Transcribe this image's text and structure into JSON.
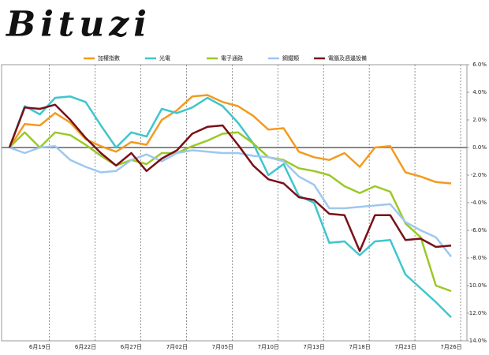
{
  "chart_data": {
    "type": "line",
    "title": "Bituzi",
    "categories": [
      null,
      null,
      "6月19日",
      null,
      null,
      "6月22日",
      null,
      null,
      "6月27日",
      null,
      null,
      "7月02日",
      null,
      null,
      "7月05日",
      null,
      null,
      "7月10日",
      null,
      null,
      "7月13日",
      null,
      null,
      "7月18日",
      null,
      null,
      "7月23日",
      null,
      null,
      "7月26日"
    ],
    "series": [
      {
        "name": "加權指數",
        "color": "#f39a1e",
        "values": [
          0,
          1.7,
          1.6,
          2.5,
          1.8,
          0.6,
          0.1,
          -0.3,
          0.4,
          0.2,
          2.0,
          2.7,
          3.7,
          3.8,
          3.3,
          3.0,
          2.3,
          1.3,
          1.4,
          -0.3,
          -0.7,
          -0.9,
          -0.4,
          -1.4,
          0.0,
          0.1,
          -1.8,
          -2.1,
          -2.5,
          -2.6
        ]
      },
      {
        "name": "光電",
        "color": "#3ec6cc",
        "values": [
          0,
          3.0,
          2.4,
          3.6,
          3.7,
          3.3,
          1.6,
          0.0,
          1.1,
          0.8,
          2.8,
          2.5,
          2.9,
          3.6,
          3.0,
          1.8,
          0.3,
          -2.0,
          -1.2,
          -3.5,
          -4.0,
          -6.9,
          -6.8,
          -7.8,
          -6.8,
          -6.7,
          -9.2,
          -10.2,
          -11.2,
          -12.3
        ]
      },
      {
        "name": "電子通路",
        "color": "#9cc826",
        "values": [
          0,
          1.1,
          0.0,
          1.1,
          0.9,
          0.2,
          -0.6,
          -1.3,
          -0.9,
          -1.2,
          -0.4,
          -0.4,
          0.1,
          0.5,
          1.0,
          1.1,
          0.3,
          -0.7,
          -0.9,
          -1.5,
          -1.7,
          -2.0,
          -2.8,
          -3.3,
          -2.8,
          -3.2,
          -5.5,
          -6.5,
          -10.0,
          -10.4
        ]
      },
      {
        "name": "鋼鐵類",
        "color": "#9ec7f0",
        "values": [
          0,
          -0.4,
          0.0,
          0.1,
          -0.9,
          -1.4,
          -1.8,
          -1.7,
          -0.9,
          -0.5,
          -1.0,
          -0.4,
          -0.2,
          -0.3,
          -0.4,
          -0.4,
          -0.6,
          -0.7,
          -1.0,
          -2.1,
          -2.7,
          -4.4,
          -4.4,
          -4.3,
          -4.2,
          -4.1,
          -5.4,
          -6.0,
          -6.5,
          -7.9
        ]
      },
      {
        "name": "電腦及週邊設備",
        "color": "#7a1019",
        "values": [
          0,
          2.9,
          2.8,
          3.1,
          2.0,
          0.7,
          -0.4,
          -1.3,
          -0.4,
          -1.7,
          -0.8,
          -0.2,
          1.0,
          1.5,
          1.6,
          0.2,
          -1.3,
          -2.3,
          -2.6,
          -3.6,
          -3.8,
          -4.8,
          -4.9,
          -7.5,
          -4.9,
          -4.9,
          -6.7,
          -6.6,
          -7.2,
          -7.1
        ]
      }
    ],
    "ylim": [
      -14,
      6
    ],
    "yticks": [
      {
        "value": -14,
        "label": "-14.0%"
      },
      {
        "value": -12,
        "label": "-12.0%"
      },
      {
        "value": -10,
        "label": "-10.0%"
      },
      {
        "value": -8,
        "label": "-8.0%"
      },
      {
        "value": -6,
        "label": "-6.0%"
      },
      {
        "value": -4,
        "label": "-4.0%"
      },
      {
        "value": -2,
        "label": "-2.0%"
      },
      {
        "value": 0,
        "label": "0.0%"
      },
      {
        "value": 2,
        "label": "2.0%"
      },
      {
        "value": 4,
        "label": "4.0%"
      },
      {
        "value": 6,
        "label": "6.0%"
      }
    ],
    "grid": true
  }
}
